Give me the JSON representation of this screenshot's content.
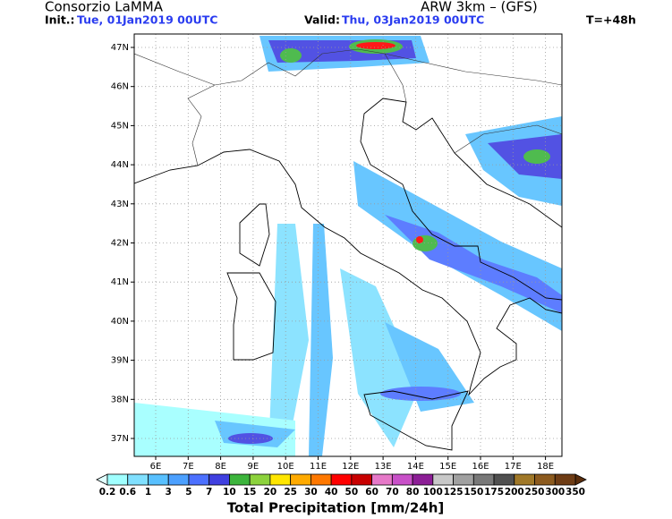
{
  "header": {
    "title": "Consorzio LaMMA",
    "model": "ARW 3km – (GFS)",
    "init_label": "Init.:",
    "init_value": "Tue, 01Jan2019 00UTC",
    "valid_label": "Valid:",
    "valid_value": "Thu, 03Jan2019 00UTC",
    "lead_time": "T=+48h"
  },
  "map": {
    "lat_labels": [
      "47N",
      "46N",
      "45N",
      "44N",
      "43N",
      "42N",
      "41N",
      "40N",
      "39N",
      "38N",
      "37N"
    ],
    "lon_labels": [
      "6E",
      "7E",
      "8E",
      "9E",
      "10E",
      "11E",
      "12E",
      "13E",
      "14E",
      "15E",
      "16E",
      "17E",
      "18E"
    ]
  },
  "colorbar": {
    "title": "Total Precipitation [mm/24h]",
    "labels": [
      "0.2",
      "0.6",
      "1",
      "3",
      "5",
      "7",
      "10",
      "15",
      "20",
      "25",
      "30",
      "40",
      "50",
      "60",
      "70",
      "80",
      "100",
      "125",
      "150",
      "175",
      "200",
      "250",
      "300",
      "350"
    ],
    "colors": [
      "#a0ffff",
      "#80e0ff",
      "#58c0ff",
      "#4ca0ff",
      "#4c70ff",
      "#4040e0",
      "#3cb43c",
      "#8cd23c",
      "#ffe600",
      "#ffaa00",
      "#ff7800",
      "#ff0000",
      "#c80000",
      "#e678c8",
      "#c850c8",
      "#8c1e96",
      "#c8c8c8",
      "#a0a0a0",
      "#787878",
      "#505050",
      "#a07828",
      "#8c5a1e",
      "#6e3c14"
    ]
  }
}
